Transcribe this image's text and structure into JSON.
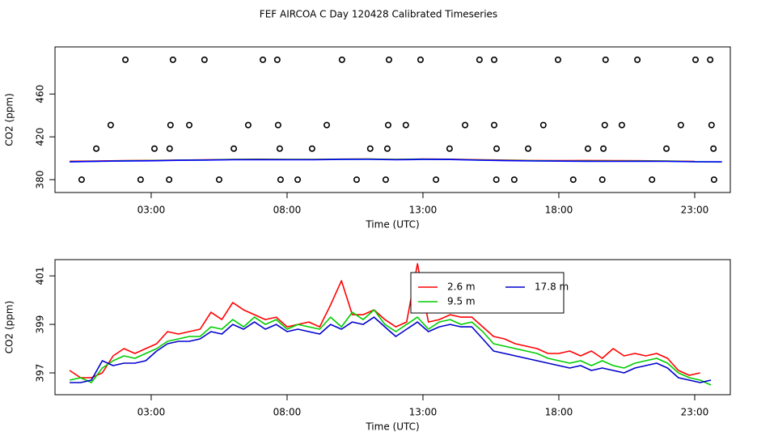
{
  "title": "FEF AIRCOA C  Day 120428  Calibrated Timeseries",
  "chart_data": [
    {
      "type": "line",
      "xlabel": "Time (UTC)",
      "ylabel": "CO2 (ppm)",
      "xlim": [
        -0.54,
        24.31
      ],
      "ylim": [
        368,
        504
      ],
      "xticks": [
        {
          "value": 3,
          "label": "03:00"
        },
        {
          "value": 8,
          "label": "08:00"
        },
        {
          "value": 13,
          "label": "13:00"
        },
        {
          "value": 18,
          "label": "18:00"
        },
        {
          "value": 23,
          "label": "23:00"
        }
      ],
      "yticks": [
        380,
        420,
        460
      ],
      "x": [
        0,
        1,
        2,
        3,
        4,
        5,
        6,
        7,
        8,
        9,
        10,
        11,
        12,
        13,
        14,
        15,
        16,
        17,
        18,
        19,
        20,
        21,
        22,
        23,
        24
      ],
      "series": [
        {
          "color": "#ff0000",
          "values": [
            397.2,
            397.5,
            397.8,
            398.0,
            398.3,
            398.6,
            399.0,
            399.1,
            398.9,
            399.0,
            399.2,
            399.3,
            399.0,
            399.3,
            399.1,
            398.7,
            398.3,
            397.9,
            397.8,
            397.9,
            397.8,
            397.7,
            397.5,
            397.0,
            null
          ]
        },
        {
          "color": "#00cd00",
          "values": [
            396.8,
            397.2,
            397.6,
            397.8,
            398.2,
            398.4,
            398.8,
            398.9,
            398.8,
            398.8,
            399.1,
            399.2,
            398.8,
            399.1,
            399.0,
            398.4,
            398.0,
            397.7,
            397.5,
            397.4,
            397.3,
            397.4,
            397.3,
            396.8,
            396.5
          ]
        },
        {
          "color": "#0000ff",
          "values": [
            396.6,
            397.2,
            397.4,
            397.6,
            398.1,
            398.3,
            398.6,
            398.7,
            398.6,
            398.6,
            398.9,
            399.0,
            398.6,
            398.9,
            398.8,
            398.2,
            397.8,
            397.5,
            397.3,
            397.2,
            397.1,
            397.2,
            397.1,
            396.7,
            396.6
          ]
        },
        {
          "color": "#000000",
          "marker": "circle",
          "x": [
            2.05,
            3.8,
            4.96,
            7.11,
            7.64,
            10.02,
            11.75,
            12.91,
            15.08,
            15.62,
            17.97,
            19.72,
            20.89,
            23.03,
            23.57,
            1.51,
            3.71,
            4.4,
            6.57,
            7.67,
            9.46,
            11.72,
            12.37,
            14.55,
            15.62,
            17.43,
            19.69,
            20.32,
            22.49,
            23.62,
            0.98,
            3.12,
            3.68,
            6.04,
            7.73,
            8.92,
            11.06,
            11.69,
            13.98,
            15.71,
            16.87,
            19.07,
            19.64,
            21.96,
            23.69,
            0.44,
            2.61,
            3.66,
            5.5,
            7.76,
            8.39,
            10.56,
            11.63,
            13.48,
            15.7,
            16.36,
            18.53,
            19.6,
            21.43,
            23.71
          ],
          "values": [
            492,
            492,
            492,
            492,
            492,
            492,
            492,
            492,
            492,
            492,
            492,
            492,
            492,
            492,
            492,
            431,
            431,
            431,
            431,
            431,
            431,
            431,
            431,
            431,
            431,
            431,
            431,
            431,
            431,
            431,
            409,
            409,
            409,
            409,
            409,
            409,
            409,
            409,
            409,
            409,
            409,
            409,
            409,
            409,
            409,
            380,
            380,
            380,
            380,
            380,
            380,
            380,
            380,
            380,
            380,
            380,
            380,
            380,
            380,
            380
          ]
        }
      ]
    },
    {
      "type": "line",
      "xlabel": "Time (UTC)",
      "ylabel": "CO2 (ppm)",
      "xlim": [
        -0.54,
        24.31
      ],
      "ylim": [
        396.1,
        401.67
      ],
      "xticks": [
        {
          "value": 3,
          "label": "03:00"
        },
        {
          "value": 8,
          "label": "08:00"
        },
        {
          "value": 13,
          "label": "13:00"
        },
        {
          "value": 18,
          "label": "18:00"
        },
        {
          "value": 23,
          "label": "23:00"
        }
      ],
      "yticks": [
        397,
        399,
        401
      ],
      "legend": "top",
      "x": [
        0,
        0.4,
        0.8,
        1.2,
        1.6,
        2,
        2.4,
        2.8,
        3.2,
        3.6,
        4,
        4.4,
        4.8,
        5.2,
        5.6,
        6,
        6.4,
        6.8,
        7.2,
        7.6,
        8,
        8.4,
        8.8,
        9.2,
        9.6,
        10,
        10.4,
        10.8,
        11.2,
        11.6,
        12,
        12.4,
        12.8,
        13.2,
        13.6,
        14,
        14.4,
        14.8,
        15.2,
        15.6,
        16,
        16.4,
        16.8,
        17.2,
        17.6,
        18,
        18.4,
        18.8,
        19.2,
        19.6,
        20,
        20.4,
        20.8,
        21.2,
        21.6,
        22,
        22.4,
        22.8,
        23.2,
        23.6
      ],
      "series": [
        {
          "name": "2.6 m",
          "color": "#ff0000",
          "values": [
            397.1,
            396.8,
            396.8,
            397.0,
            397.7,
            398.0,
            397.8,
            398.0,
            398.2,
            398.7,
            398.6,
            398.7,
            398.8,
            399.5,
            399.2,
            399.9,
            399.6,
            399.4,
            399.2,
            399.3,
            398.9,
            399.0,
            399.1,
            398.9,
            399.8,
            400.8,
            399.4,
            399.4,
            399.6,
            399.2,
            398.9,
            399.1,
            401.5,
            399.1,
            399.2,
            399.4,
            399.3,
            399.3,
            398.9,
            398.5,
            398.4,
            398.2,
            398.1,
            398.0,
            397.8,
            397.8,
            397.9,
            397.7,
            397.9,
            397.6,
            398.0,
            397.7,
            397.8,
            397.7,
            397.8,
            397.6,
            397.1,
            396.9,
            397.0,
            null
          ]
        },
        {
          "name": "9.5 m",
          "color": "#00cd00",
          "values": [
            396.7,
            396.8,
            396.6,
            397.2,
            397.5,
            397.7,
            397.6,
            397.8,
            398.0,
            398.3,
            398.4,
            398.5,
            398.5,
            398.9,
            398.8,
            399.2,
            398.9,
            399.3,
            399.0,
            399.2,
            398.8,
            399.0,
            398.9,
            398.8,
            399.3,
            398.9,
            399.5,
            399.2,
            399.6,
            399.0,
            398.7,
            399.0,
            399.3,
            398.8,
            399.1,
            399.2,
            399.0,
            399.1,
            398.7,
            398.2,
            398.1,
            398.0,
            397.9,
            397.8,
            397.6,
            397.5,
            397.4,
            397.5,
            397.3,
            397.5,
            397.3,
            397.2,
            397.4,
            397.5,
            397.6,
            397.4,
            397.0,
            396.8,
            396.7,
            396.5
          ]
        },
        {
          "name": "17.8 m",
          "color": "#0000cd",
          "values": [
            396.6,
            396.6,
            396.7,
            397.5,
            397.3,
            397.4,
            397.4,
            397.5,
            397.9,
            398.2,
            398.3,
            398.3,
            398.4,
            398.7,
            398.6,
            399.0,
            398.8,
            399.1,
            398.8,
            399.0,
            398.7,
            398.8,
            398.7,
            398.6,
            399.0,
            398.8,
            399.1,
            399.0,
            399.3,
            398.9,
            398.5,
            398.8,
            399.1,
            398.7,
            398.9,
            399.0,
            398.9,
            398.9,
            398.4,
            397.9,
            397.8,
            397.7,
            397.6,
            397.5,
            397.4,
            397.3,
            397.2,
            397.3,
            397.1,
            397.2,
            397.1,
            397.0,
            397.2,
            397.3,
            397.4,
            397.2,
            396.8,
            396.7,
            396.6,
            396.7
          ]
        }
      ]
    }
  ]
}
